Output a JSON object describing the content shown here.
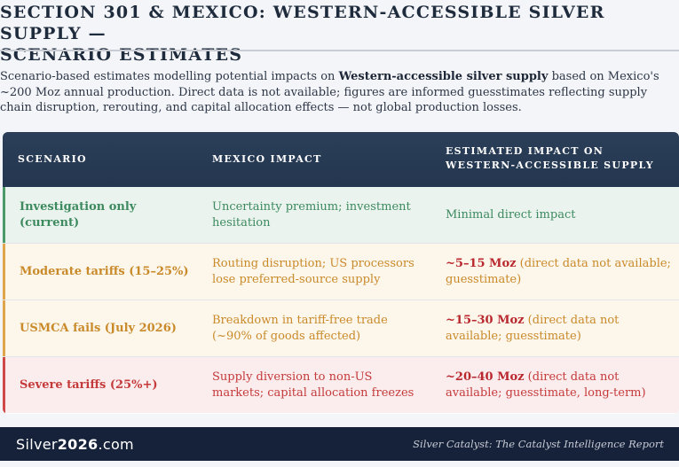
{
  "title": {
    "line1": "SECTION 301 & MEXICO: WESTERN-ACCESSIBLE SILVER SUPPLY —",
    "line2": "SCENARIO ESTIMATES"
  },
  "intro": {
    "part1": "Scenario-based estimates modelling potential impacts on ",
    "bold": "Western-accessible silver supply",
    "part2": " based on Mexico's ~200 Moz annual production. Direct data is not available; figures are informed guesstimates reflecting supply chain disruption, rerouting, and capital allocation effects — not global production losses."
  },
  "table": {
    "headers": {
      "scenario": "SCENARIO",
      "mexico_impact": "MEXICO IMPACT",
      "western_impact_line1": "ESTIMATED IMPACT ON",
      "western_impact_line2": "WESTERN-ACCESSIBLE SUPPLY"
    },
    "rows": [
      {
        "scenario": "Investigation only (current)",
        "mexico_impact": "Uncertainty premium; investment hesitation",
        "estimate_bold": "",
        "estimate_rest": "Minimal direct impact",
        "text_color": "#3d8a5f",
        "bg_color": "#eaf3ee",
        "accent_color": "#4a9a6a",
        "estimate_color": "#3d8a5f"
      },
      {
        "scenario": "Moderate tariffs (15–25%)",
        "mexico_impact": "Routing disruption; US processors lose preferred-source supply",
        "estimate_bold": "~5–15 Moz",
        "estimate_rest": " (direct data not available; guesstimate)",
        "text_color": "#c98a2a",
        "bg_color": "#fdf6ea",
        "accent_color": "#e0a54a",
        "estimate_color": "#c98a2a"
      },
      {
        "scenario": "USMCA fails (July 2026)",
        "mexico_impact": "Breakdown in tariff-free trade (~90% of goods affected)",
        "estimate_bold": "~15–30 Moz",
        "estimate_rest": " (direct data not available; guesstimate)",
        "text_color": "#c98a2a",
        "bg_color": "#fdf6ea",
        "accent_color": "#e0a54a",
        "estimate_color": "#c98a2a"
      },
      {
        "scenario": "Severe tariffs (25%+)",
        "mexico_impact": "Supply diversion to non-US markets; capital allocation freezes",
        "estimate_bold": "~20–40 Moz",
        "estimate_rest": " (direct data not available; guesstimate, long-term)",
        "text_color": "#c53a3a",
        "bg_color": "#fbeced",
        "accent_color": "#d04848",
        "estimate_color": "#c53a3a"
      }
    ],
    "emphasis_color": "#b8282e"
  },
  "footer": {
    "logo_main": "Silver",
    "logo_bold": "2026",
    "logo_suffix": ".com",
    "credit": "Silver Catalyst: The Catalyst Intelligence Report"
  }
}
